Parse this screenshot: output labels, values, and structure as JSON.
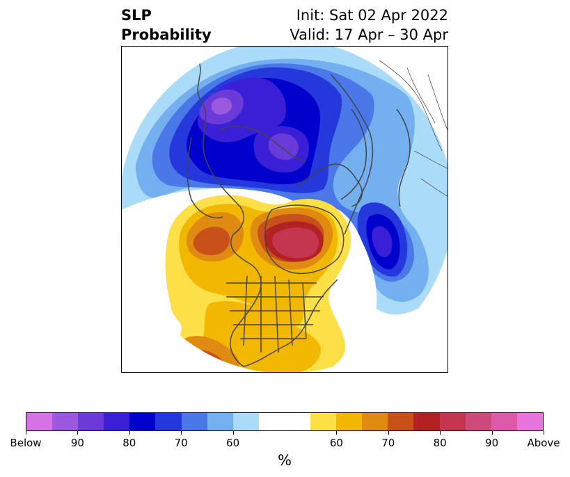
{
  "header": {
    "title_line1": "SLP",
    "title_line2": "Probability",
    "init_text": "Init: Sat 02 Apr 2022",
    "valid_text": "Valid: 17 Apr – 30 Apr"
  },
  "legend": {
    "unit": "%",
    "colors": [
      "#d572e6",
      "#9b59e0",
      "#6a3bd8",
      "#3a1fd6",
      "#0000cc",
      "#2538dc",
      "#4a78e8",
      "#74b0f0",
      "#aadcfa",
      "#ffffff",
      "#ffffff",
      "#fde047",
      "#f2b800",
      "#df8a10",
      "#c8511a",
      "#b22222",
      "#c43650",
      "#cc4b7c",
      "#dc5aa8",
      "#e874dd"
    ],
    "tick_labels": [
      "Below",
      "90",
      "80",
      "70",
      "60",
      "60",
      "70",
      "80",
      "90",
      "Above"
    ],
    "tick_positions": [
      0,
      2,
      4,
      6,
      8,
      12,
      14,
      16,
      18,
      20
    ]
  }
}
